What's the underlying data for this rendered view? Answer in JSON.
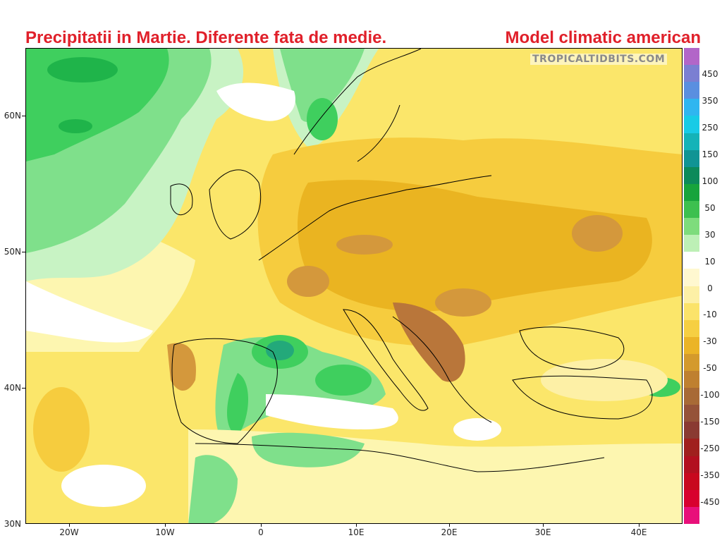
{
  "header": {
    "title_left": "Precipitatii in Martie. Diferente fata de medie.",
    "title_right": "Model climatic american"
  },
  "watermark": "TROPICALTIDBITS.COM",
  "map": {
    "lat_labels": [
      "60N",
      "50N",
      "40N",
      "30N"
    ],
    "lon_labels": [
      "20W",
      "10W",
      "0",
      "10E",
      "20E",
      "30E",
      "40E"
    ],
    "colors": {
      "dark_green": "#1fb44a",
      "green": "#3fcf5e",
      "light_green": "#7fe08b",
      "pale_green": "#c8f3c4",
      "white": "#ffffff",
      "pale_yellow": "#fdf6b0",
      "yellow": "#fbe66a",
      "gold": "#f6cc3e",
      "orange": "#eab421",
      "brown": "#d4983c",
      "dark_brown": "#b9763a",
      "teal": "#23a97a"
    }
  },
  "colorbar": {
    "labels": [
      "450",
      "350",
      "250",
      "150",
      "100",
      "50",
      "30",
      "10",
      "0",
      "-10",
      "-30",
      "-50",
      "-100",
      "-150",
      "-250",
      "-350",
      "-450"
    ],
    "colors": [
      "#b266c8",
      "#7b7fd2",
      "#5a8fe0",
      "#2fb6f0",
      "#18cbe6",
      "#14b3b8",
      "#109494",
      "#0c8a5a",
      "#17a43c",
      "#3dc04f",
      "#7edc7c",
      "#bdf0b6",
      "#ffffff",
      "#fff8d0",
      "#fdf0a6",
      "#fbe36a",
      "#f6cf42",
      "#ebb427",
      "#d49a2c",
      "#bf8030",
      "#a86a36",
      "#955238",
      "#8a3a32",
      "#a0201e",
      "#b21020",
      "#c8081e",
      "#d8002e",
      "#e8107a"
    ]
  }
}
